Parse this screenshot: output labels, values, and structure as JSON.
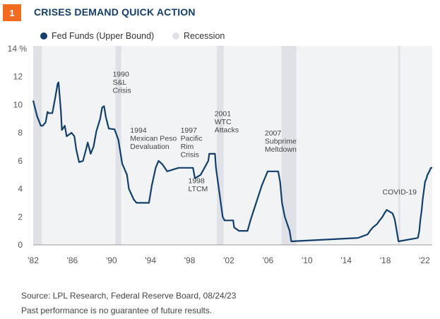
{
  "badge": "1",
  "title": "CRISES DEMAND QUICK ACTION",
  "legend": [
    {
      "label": "Fed Funds (Upper Bound)",
      "color": "#123f6b"
    },
    {
      "label": "Recession",
      "color": "#dfe1e6"
    }
  ],
  "source": "Source: LPL Research, Federal Reserve Board,  08/24/23",
  "disclaimer": "Past performance is no guarantee of future results.",
  "chart_data": {
    "type": "line",
    "title": "CRISES DEMAND QUICK ACTION",
    "ylabel": "%",
    "ylim": [
      0,
      14
    ],
    "yticks": [
      0,
      2,
      4,
      6,
      8,
      10,
      12,
      14
    ],
    "ytick_labels": [
      "0",
      "2",
      "4",
      "6",
      "8",
      "10",
      "12",
      "14 %"
    ],
    "xlim": [
      1982,
      2023.7
    ],
    "xticks": [
      1982,
      1986,
      1990,
      1994,
      1998,
      2002,
      2006,
      2010,
      2014,
      2018,
      2022
    ],
    "xtick_labels": [
      "'82",
      "'86",
      "'90",
      "'94",
      "'98",
      "'02",
      "'06",
      "'10",
      "'14",
      "'18",
      "'22"
    ],
    "grid": false,
    "legend_position": "top-left",
    "background_color": "#f2f3f5",
    "recessions": [
      [
        1982,
        1982.9
      ],
      [
        1990.6,
        1991.2
      ],
      [
        2001.2,
        2001.9
      ],
      [
        2007.95,
        2009.5
      ],
      [
        2020.15,
        2020.35
      ]
    ],
    "series": [
      {
        "name": "Fed Funds (Upper Bound)",
        "color": "#123f6b",
        "x": [
          1982.0,
          1982.4,
          1982.8,
          1983.0,
          1983.3,
          1983.5,
          1983.6,
          1984.0,
          1984.3,
          1984.55,
          1984.65,
          1984.9,
          1985.0,
          1985.3,
          1985.5,
          1986.0,
          1986.3,
          1986.5,
          1986.8,
          1987.2,
          1987.5,
          1987.7,
          1987.9,
          1988.0,
          1988.3,
          1988.6,
          1989.0,
          1989.2,
          1989.4,
          1989.6,
          1989.9,
          1990.5,
          1990.9,
          1991.3,
          1991.8,
          1992.0,
          1992.5,
          1992.8,
          1994.1,
          1994.4,
          1994.8,
          1995.1,
          1995.5,
          1996.0,
          1997.2,
          1998.7,
          1998.9,
          1999.5,
          1999.9,
          2000.3,
          2000.4,
          2001.0,
          2001.1,
          2001.4,
          2001.8,
          2002.0,
          2002.9,
          2003.0,
          2003.5,
          2004.4,
          2004.7,
          2005.3,
          2005.9,
          2006.5,
          2007.6,
          2007.8,
          2008.0,
          2008.3,
          2008.8,
          2008.97,
          2015.95,
          2016.95,
          2017.2,
          2017.5,
          2017.95,
          2018.2,
          2018.5,
          2018.7,
          2018.95,
          2019.55,
          2019.7,
          2019.8,
          2020.17,
          2022.2,
          2022.35,
          2022.45,
          2022.6,
          2022.7,
          2022.85,
          2022.95,
          2023.1,
          2023.2,
          2023.4,
          2023.55,
          2023.7
        ],
        "values": [
          10.3,
          9.2,
          8.5,
          8.5,
          8.75,
          9.5,
          9.4,
          9.4,
          10.5,
          11.5,
          11.6,
          9.5,
          8.2,
          8.5,
          7.75,
          8.0,
          7.75,
          6.8,
          5.9,
          6.0,
          6.75,
          7.3,
          6.8,
          6.5,
          7.0,
          8.1,
          9.0,
          9.8,
          9.9,
          9.1,
          8.3,
          8.25,
          7.5,
          5.8,
          5.0,
          4.0,
          3.25,
          3.0,
          3.0,
          4.25,
          5.5,
          6.0,
          5.75,
          5.25,
          5.5,
          5.5,
          4.75,
          5.0,
          5.5,
          6.0,
          6.5,
          6.5,
          5.5,
          4.0,
          2.0,
          1.75,
          1.75,
          1.25,
          1.0,
          1.0,
          1.75,
          3.0,
          4.25,
          5.25,
          5.25,
          4.5,
          3.0,
          2.0,
          1.0,
          0.25,
          0.5,
          0.75,
          1.0,
          1.25,
          1.5,
          1.75,
          2.0,
          2.25,
          2.5,
          2.25,
          2.0,
          1.75,
          0.25,
          0.5,
          1.0,
          1.75,
          2.5,
          3.25,
          4.0,
          4.5,
          4.75,
          5.0,
          5.25,
          5.5,
          5.5
        ]
      }
    ],
    "annotations": [
      {
        "x": 1990.3,
        "y": 12.0,
        "lines": [
          "1990",
          "S&L",
          "Crisis"
        ]
      },
      {
        "x": 1994.2,
        "y": 8.0,
        "lines": [
          "1994",
          "Mexican Peso",
          "Devaluation"
        ]
      },
      {
        "x": 1997.1,
        "y": 8.0,
        "lines": [
          "1997",
          "Pacific",
          "Rim",
          "Crisis"
        ]
      },
      {
        "x": 1998.2,
        "y": 4.4,
        "lines": [
          "1998",
          "LTCM"
        ]
      },
      {
        "x": 2000.8,
        "y": 9.2,
        "lines": [
          "2001",
          "WTC",
          "Attacks"
        ]
      },
      {
        "x": 2006.2,
        "y": 7.8,
        "lines": [
          "2007",
          "Subprime",
          "Meltdown"
        ]
      },
      {
        "x": 2018.5,
        "y": 3.6,
        "lines": [
          "COVID-19"
        ]
      }
    ]
  }
}
